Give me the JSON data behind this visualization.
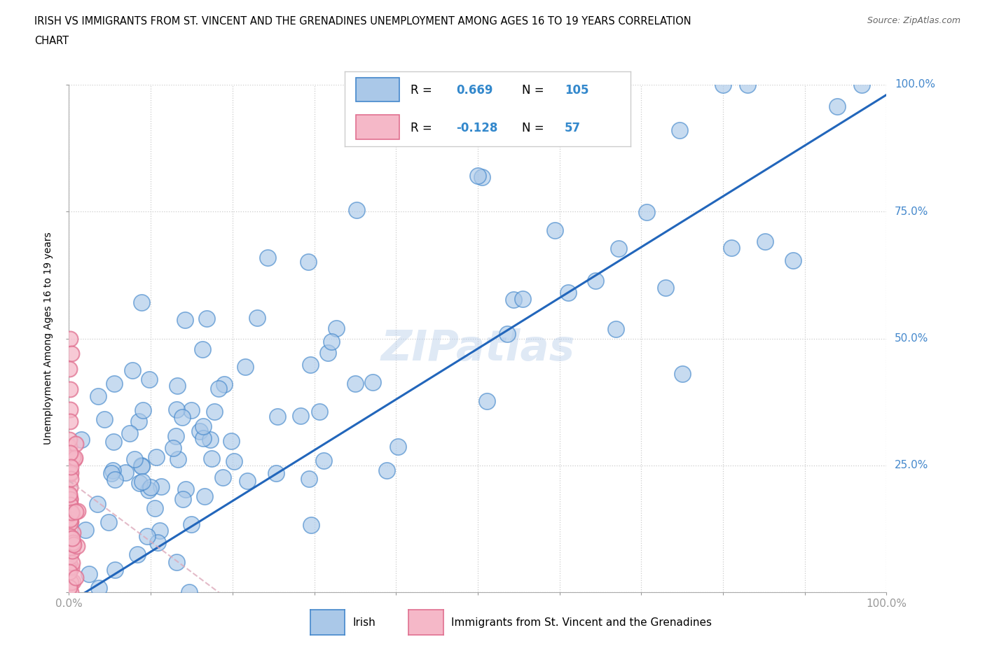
{
  "title_line1": "IRISH VS IMMIGRANTS FROM ST. VINCENT AND THE GRENADINES UNEMPLOYMENT AMONG AGES 16 TO 19 YEARS CORRELATION",
  "title_line2": "CHART",
  "source_text": "Source: ZipAtlas.com",
  "ylabel": "Unemployment Among Ages 16 to 19 years",
  "background_color": "#ffffff",
  "irish_face_color": "#aac8e8",
  "irish_edge_color": "#4488cc",
  "svg_face_color": "#f5b8c8",
  "svg_edge_color": "#e07090",
  "irish_line_color": "#2266bb",
  "svg_line_color": "#ddaabb",
  "grid_color": "#cccccc",
  "watermark": "ZIPatlas",
  "legend_irish_label": "Irish",
  "legend_svg_label": "Immigrants from St. Vincent and the Grenadines",
  "irish_R": "0.669",
  "irish_N": "105",
  "svg_R": "-0.128",
  "svg_N": "57",
  "irish_slope": 1.0,
  "irish_intercept": -0.02,
  "svg_slope": -1.2,
  "svg_intercept": 0.22
}
